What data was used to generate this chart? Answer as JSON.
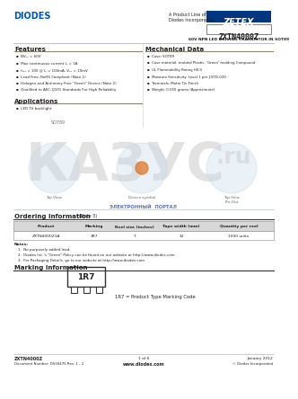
{
  "title": "ZXTN4000Z",
  "subtitle": "60V NPN LED DRIVING TRANSISTOR IN SOT89",
  "brand": "DIODES",
  "brand2": "ZETEX",
  "brand_tagline": "A Product Line of\nDiodes Incorporated",
  "features_title": "Features",
  "features": [
    "BV₀₀ > 60V",
    "Max continuous current I₀ = 1A",
    "h₀₀ = 100 @ I₀ = 100mA, V₀₀ = 10mV",
    "Lead Free, RoHS Compliant (Note 1)",
    "Halogen and Antimony Free \"Green\" Device (Note 2)",
    "Qualified to AEC-Q101 Standards For High Reliability"
  ],
  "applications_title": "Applications",
  "applications": [
    "LED TV backlight"
  ],
  "mech_title": "Mechanical Data",
  "mech": [
    "Case: SOT89",
    "Case material: molded Plastic, 'Green' molding Compound",
    "UL Flammability Rating HV-0",
    "Moisture Sensitivity: Level 1 per J-STD-020",
    "Terminals: Matte Tin Finish",
    "Weight: 0.050 grams (Approximate)"
  ],
  "ordering_title": "Ordering Information",
  "ordering_note_num": "(Note 3)",
  "ordering_headers": [
    "Product",
    "Marking",
    "Reel size (inches)",
    "Tape width (mm)",
    "Quantity per reel"
  ],
  "ordering_row": [
    "ZXTN4000Z1A",
    "1R7",
    "7",
    "12",
    "1000 units"
  ],
  "ordering_notes": [
    "1.  No purposely added lead.",
    "2.  Diodes Inc.'s \"Green\" Policy can be found on our website at http://www.diodes.com",
    "3.  For Packaging Details, go to our website at http://www.diodes.com"
  ],
  "marking_title": "Marking Information",
  "marking_code": "1R7",
  "marking_note": "1R7 = Product Type Marking Code",
  "package_label": "SOT89",
  "circle_labels": [
    "Top View",
    "Device symbol",
    "Top View\nPin-Out"
  ],
  "kazus_text": "КАЗУС",
  "kazus_ru": ".ru",
  "cyrillic_text": "ЭЛЕКТРОННЫЙ  ПОРТАЛ",
  "footer_left1": "ZXTN4000Z",
  "footer_left2": "Document Number: DS30476 Rev. 1 - 2",
  "footer_center": "www.diodes.com",
  "footer_page": "1 of 6",
  "footer_right1": "January 2012",
  "footer_right2": "© Diodes Incorporated",
  "bg_color": "#ffffff",
  "diodes_blue": "#0057a8",
  "zetex_blue": "#003580",
  "orange_line": "#e86a00",
  "dark_text": "#222222",
  "med_text": "#555555",
  "table_header_bg": "#cccccc",
  "kazus_gray": "#d0d0d0",
  "kazus_orange": "#e07020",
  "cyrillic_blue": "#4466aa"
}
